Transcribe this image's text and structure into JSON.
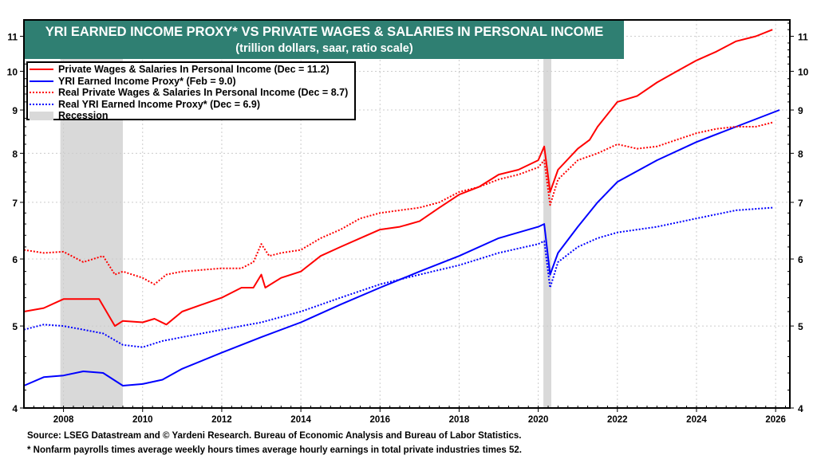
{
  "chart_data": {
    "type": "line",
    "title": "YRI EARNED INCOME PROXY* VS PRIVATE WAGES & SALARIES IN PERSONAL INCOME",
    "subtitle": "(trillion dollars, saar, ratio scale)",
    "xlabel": "",
    "ylabel": "",
    "y_scale": "log",
    "xlim": [
      2007.0,
      2026.36
    ],
    "ylim": [
      4,
      11.5
    ],
    "x_ticks": [
      "2008",
      "2010",
      "2012",
      "2014",
      "2016",
      "2018",
      "2020",
      "2022",
      "2024",
      "2026"
    ],
    "y_ticks": [
      "4",
      "5",
      "6",
      "7",
      "8",
      "9",
      "10",
      "11"
    ],
    "grid": true,
    "legend_position": "top-left",
    "recessions": [
      [
        2007.92,
        2009.5
      ],
      [
        2020.13,
        2020.33
      ]
    ],
    "series": [
      {
        "name": "Private Wages & Salaries In Personal Income  (Dec = 11.2)",
        "color": "#ff0000",
        "style": "solid",
        "points": [
          [
            2007,
            5.2
          ],
          [
            2007.5,
            5.25
          ],
          [
            2008,
            5.38
          ],
          [
            2008.5,
            5.38
          ],
          [
            2008.9,
            5.38
          ],
          [
            2009.3,
            5.0
          ],
          [
            2009.5,
            5.07
          ],
          [
            2010,
            5.05
          ],
          [
            2010.3,
            5.1
          ],
          [
            2010.6,
            5.02
          ],
          [
            2011,
            5.2
          ],
          [
            2011.5,
            5.3
          ],
          [
            2012,
            5.4
          ],
          [
            2012.5,
            5.55
          ],
          [
            2012.8,
            5.55
          ],
          [
            2013,
            5.75
          ],
          [
            2013.1,
            5.55
          ],
          [
            2013.5,
            5.7
          ],
          [
            2014,
            5.8
          ],
          [
            2014.5,
            6.05
          ],
          [
            2015,
            6.2
          ],
          [
            2015.5,
            6.35
          ],
          [
            2016,
            6.5
          ],
          [
            2016.5,
            6.55
          ],
          [
            2017,
            6.65
          ],
          [
            2017.5,
            6.9
          ],
          [
            2018,
            7.15
          ],
          [
            2018.5,
            7.3
          ],
          [
            2019,
            7.55
          ],
          [
            2019.5,
            7.65
          ],
          [
            2020,
            7.85
          ],
          [
            2020.15,
            8.15
          ],
          [
            2020.3,
            7.2
          ],
          [
            2020.5,
            7.65
          ],
          [
            2021,
            8.1
          ],
          [
            2021.3,
            8.3
          ],
          [
            2021.5,
            8.6
          ],
          [
            2022,
            9.2
          ],
          [
            2022.5,
            9.35
          ],
          [
            2023,
            9.7
          ],
          [
            2023.5,
            10.0
          ],
          [
            2024,
            10.3
          ],
          [
            2024.5,
            10.55
          ],
          [
            2025,
            10.85
          ],
          [
            2025.5,
            11.0
          ],
          [
            2025.92,
            11.2
          ]
        ]
      },
      {
        "name": "YRI Earned Income Proxy* (Feb = 9.0)",
        "color": "#0000ff",
        "style": "solid",
        "points": [
          [
            2007,
            4.25
          ],
          [
            2007.5,
            4.35
          ],
          [
            2008,
            4.37
          ],
          [
            2008.5,
            4.42
          ],
          [
            2009,
            4.4
          ],
          [
            2009.5,
            4.25
          ],
          [
            2010,
            4.27
          ],
          [
            2010.5,
            4.32
          ],
          [
            2011,
            4.45
          ],
          [
            2012,
            4.65
          ],
          [
            2013,
            4.85
          ],
          [
            2014,
            5.05
          ],
          [
            2015,
            5.3
          ],
          [
            2016,
            5.55
          ],
          [
            2017,
            5.8
          ],
          [
            2018,
            6.05
          ],
          [
            2019,
            6.35
          ],
          [
            2020,
            6.55
          ],
          [
            2020.15,
            6.6
          ],
          [
            2020.3,
            5.75
          ],
          [
            2020.5,
            6.1
          ],
          [
            2021,
            6.55
          ],
          [
            2021.5,
            7.0
          ],
          [
            2022,
            7.4
          ],
          [
            2023,
            7.85
          ],
          [
            2024,
            8.25
          ],
          [
            2025,
            8.6
          ],
          [
            2026.1,
            9.0
          ]
        ]
      },
      {
        "name": "Real Private Wages & Salaries In Personal Income  (Dec = 8.7)",
        "color": "#ff0000",
        "style": "dotted",
        "points": [
          [
            2007,
            6.15
          ],
          [
            2007.5,
            6.1
          ],
          [
            2008,
            6.12
          ],
          [
            2008.5,
            5.95
          ],
          [
            2009,
            6.05
          ],
          [
            2009.3,
            5.75
          ],
          [
            2009.5,
            5.8
          ],
          [
            2010,
            5.7
          ],
          [
            2010.3,
            5.6
          ],
          [
            2010.6,
            5.75
          ],
          [
            2011,
            5.8
          ],
          [
            2012,
            5.85
          ],
          [
            2012.5,
            5.85
          ],
          [
            2012.8,
            5.95
          ],
          [
            2013,
            6.25
          ],
          [
            2013.2,
            6.05
          ],
          [
            2013.5,
            6.1
          ],
          [
            2014,
            6.15
          ],
          [
            2014.5,
            6.35
          ],
          [
            2015,
            6.5
          ],
          [
            2015.5,
            6.7
          ],
          [
            2016,
            6.8
          ],
          [
            2016.5,
            6.85
          ],
          [
            2017,
            6.9
          ],
          [
            2017.5,
            7.0
          ],
          [
            2018,
            7.2
          ],
          [
            2018.5,
            7.3
          ],
          [
            2019,
            7.45
          ],
          [
            2019.5,
            7.55
          ],
          [
            2020,
            7.7
          ],
          [
            2020.15,
            7.85
          ],
          [
            2020.3,
            6.95
          ],
          [
            2020.5,
            7.45
          ],
          [
            2021,
            7.85
          ],
          [
            2021.5,
            8.0
          ],
          [
            2022,
            8.2
          ],
          [
            2022.5,
            8.1
          ],
          [
            2023,
            8.15
          ],
          [
            2023.5,
            8.3
          ],
          [
            2024,
            8.45
          ],
          [
            2024.5,
            8.55
          ],
          [
            2025,
            8.6
          ],
          [
            2025.5,
            8.6
          ],
          [
            2025.92,
            8.7
          ]
        ]
      },
      {
        "name": "Real YRI Earned Income Proxy* (Dec = 6.9)",
        "color": "#0000ff",
        "style": "dotted",
        "points": [
          [
            2007,
            4.95
          ],
          [
            2007.5,
            5.02
          ],
          [
            2008,
            5.0
          ],
          [
            2008.5,
            4.95
          ],
          [
            2009,
            4.9
          ],
          [
            2009.5,
            4.75
          ],
          [
            2010,
            4.72
          ],
          [
            2010.5,
            4.8
          ],
          [
            2011,
            4.85
          ],
          [
            2012,
            4.95
          ],
          [
            2013,
            5.05
          ],
          [
            2014,
            5.2
          ],
          [
            2015,
            5.4
          ],
          [
            2016,
            5.6
          ],
          [
            2017,
            5.75
          ],
          [
            2018,
            5.9
          ],
          [
            2019,
            6.1
          ],
          [
            2020,
            6.25
          ],
          [
            2020.15,
            6.3
          ],
          [
            2020.3,
            5.55
          ],
          [
            2020.5,
            5.95
          ],
          [
            2021,
            6.2
          ],
          [
            2021.5,
            6.35
          ],
          [
            2022,
            6.45
          ],
          [
            2023,
            6.55
          ],
          [
            2024,
            6.7
          ],
          [
            2025,
            6.85
          ],
          [
            2025.92,
            6.9
          ]
        ]
      }
    ],
    "recession_label": "Recession",
    "recession_color": "#d9d9d9",
    "title_bg": "#2f7f72"
  },
  "footer": {
    "source": "Source: LSEG Datastream and © Yardeni Research. Bureau of Economic Analysis and Bureau of Labor Statistics.",
    "note": "* Nonfarm payrolls times average weekly hours times average hourly earnings in total private industries times 52."
  }
}
